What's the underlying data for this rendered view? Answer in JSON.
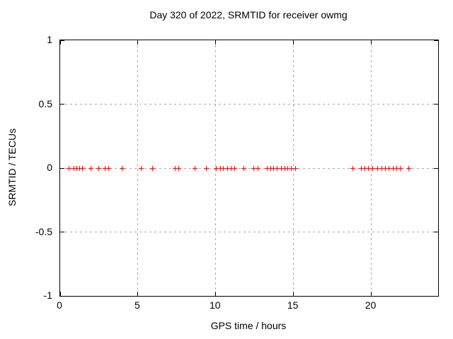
{
  "chart_data": {
    "type": "scatter",
    "title": "Day 320 of 2022, SRMTID for receiver owmg",
    "xlabel": "GPS time / hours",
    "ylabel": "SRMTID / TECUs",
    "xlim": [
      0,
      24.3
    ],
    "ylim": [
      -1,
      1
    ],
    "x_ticks": [
      0,
      5,
      10,
      15,
      20
    ],
    "y_ticks": [
      1,
      0.5,
      0,
      -0.5,
      -1
    ],
    "grid": true,
    "grid_style": "dashed",
    "legend_position": "none",
    "marker": "plus",
    "marker_color": "#ff0000",
    "grid_color": "#a8a8a8",
    "border_color": "#000000",
    "background_color": "#ffffff",
    "series": [
      {
        "name": "SRMTID",
        "x": [
          0.55,
          0.87,
          1.06,
          1.24,
          1.42,
          1.97,
          2.47,
          2.91,
          3.11,
          3.97,
          5.19,
          5.92,
          7.4,
          7.61,
          8.65,
          9.41,
          10.04,
          10.32,
          10.5,
          10.74,
          11.0,
          11.23,
          11.83,
          12.44,
          12.71,
          13.32,
          13.54,
          13.74,
          13.97,
          14.2,
          14.43,
          14.65,
          14.88,
          15.11,
          18.81,
          19.34,
          19.6,
          19.84,
          20.07,
          20.42,
          20.67,
          20.9,
          21.13,
          21.39,
          21.63,
          21.86,
          22.42
        ],
        "y": [
          0,
          0,
          0,
          0,
          0,
          0,
          0,
          0,
          0,
          0,
          0,
          0,
          0,
          0,
          0,
          0,
          0,
          0,
          0,
          0,
          0,
          0,
          0,
          0,
          0,
          0,
          0,
          0,
          0,
          0,
          0,
          0,
          0,
          0,
          0,
          0,
          0,
          0,
          0,
          0,
          0,
          0,
          0,
          0,
          0,
          0,
          0
        ]
      }
    ]
  }
}
